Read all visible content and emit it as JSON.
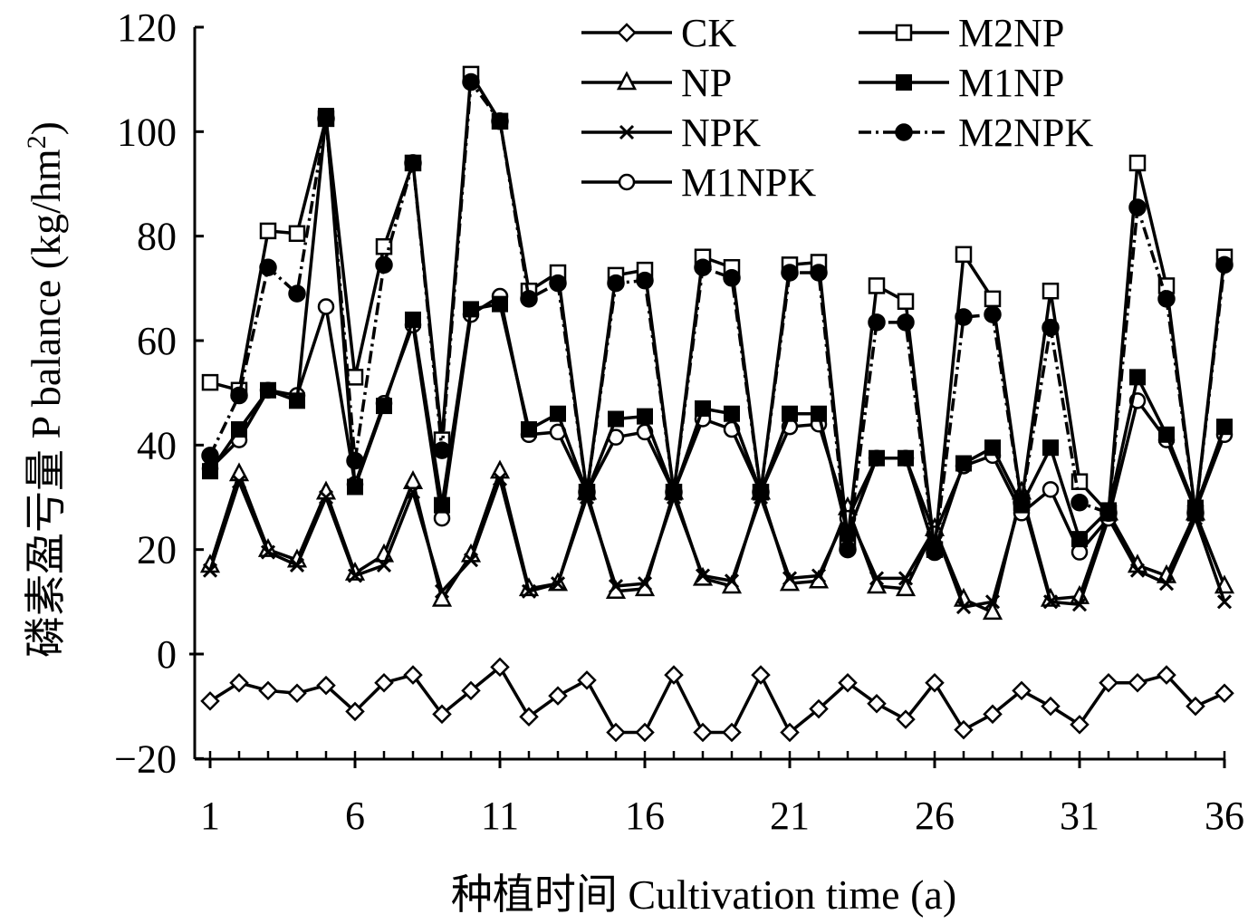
{
  "chart_data": {
    "type": "line",
    "title": "",
    "xlabel": "种植时间 Cultivation time (a)",
    "ylabel": "磷素盈亏量 P balance (kg/hm²)",
    "ylabel_parts": {
      "main": "磷素盈亏量 P balance (kg/hm",
      "sup": "2",
      "end": ")"
    },
    "xlim": [
      1,
      36
    ],
    "ylim": [
      -20,
      120
    ],
    "x_ticks": [
      1,
      6,
      11,
      16,
      21,
      26,
      31,
      36
    ],
    "x_tick_labels": [
      "1",
      "6",
      "11",
      "16",
      "21",
      "26",
      "31",
      "36"
    ],
    "y_ticks": [
      -20,
      0,
      20,
      40,
      60,
      80,
      100,
      120
    ],
    "y_tick_labels": [
      "−20",
      "0",
      "20",
      "40",
      "60",
      "80",
      "100",
      "120"
    ],
    "grid": false,
    "legend_position": "top-right",
    "x": [
      1,
      2,
      3,
      4,
      5,
      6,
      7,
      8,
      9,
      10,
      11,
      12,
      13,
      14,
      15,
      16,
      17,
      18,
      19,
      20,
      21,
      22,
      23,
      24,
      25,
      26,
      27,
      28,
      29,
      30,
      31,
      32,
      33,
      34,
      35,
      36
    ],
    "series": [
      {
        "name": "CK",
        "marker": "diamond-open",
        "dash": "solid",
        "values": [
          -9,
          -5.5,
          -7,
          -7.5,
          -6,
          -11,
          -5.5,
          -4,
          -11.5,
          -7,
          -2.5,
          -12,
          -8,
          -5,
          -15,
          -15,
          -4,
          -15,
          -15,
          -4,
          -15,
          -10.5,
          -5.5,
          -9.5,
          -12.5,
          -5.5,
          -14.5,
          -11.5,
          -7,
          -10,
          -13.5,
          -5.5,
          -5.5,
          -4,
          -10,
          -7.5
        ]
      },
      {
        "name": "NP",
        "marker": "triangle-open",
        "dash": "solid",
        "values": [
          17,
          34.5,
          20,
          18,
          31,
          15.5,
          19,
          33,
          10.5,
          19,
          35,
          12.5,
          13.5,
          31,
          12,
          12.5,
          31,
          14.5,
          13,
          31,
          13.5,
          14,
          28,
          13,
          12.5,
          24,
          10.5,
          8,
          31,
          10.5,
          11,
          27,
          17,
          15,
          27,
          13
        ]
      },
      {
        "name": "NPK",
        "marker": "x",
        "dash": "solid",
        "values": [
          16,
          33,
          19.5,
          17,
          30,
          15,
          17,
          31,
          12,
          18,
          33.5,
          12,
          13.5,
          30,
          13,
          13.5,
          30,
          15,
          14,
          30,
          14.5,
          15,
          27,
          14.5,
          14.5,
          24,
          9,
          10,
          30,
          10,
          9.5,
          26,
          16,
          13.5,
          26,
          10
        ]
      },
      {
        "name": "M1NPK",
        "marker": "circle-open",
        "dash": "solid",
        "values": [
          35.5,
          41,
          50.5,
          49.5,
          66.5,
          32.5,
          48,
          63,
          26,
          65,
          68.5,
          42,
          42.5,
          31,
          41.5,
          42.5,
          31,
          45,
          43,
          31,
          43.5,
          44,
          26,
          37.5,
          37.5,
          23,
          36,
          38,
          27,
          31.5,
          19.5,
          26,
          48.5,
          41,
          27.5,
          42
        ]
      },
      {
        "name": "M2NP",
        "marker": "square-open",
        "dash": "solid",
        "values": [
          52,
          50.5,
          81,
          80.5,
          102.5,
          53,
          78,
          94,
          41,
          111,
          102,
          69.5,
          73,
          31,
          72.5,
          73.5,
          31,
          76,
          74,
          31,
          74.5,
          75,
          22,
          70.5,
          67.5,
          20,
          76.5,
          68,
          29,
          69.5,
          33,
          27,
          94,
          70.5,
          27,
          76
        ]
      },
      {
        "name": "M1NP",
        "marker": "square-filled",
        "dash": "solid",
        "values": [
          35,
          43,
          50.5,
          48.5,
          103,
          32,
          47.5,
          64,
          28.5,
          66,
          67,
          43,
          46,
          31,
          45,
          45.5,
          31,
          47,
          46,
          31,
          46,
          46,
          23,
          37.5,
          37.5,
          20,
          36.5,
          39.5,
          28.5,
          39.5,
          22,
          27.5,
          53,
          42,
          28,
          43.5
        ]
      },
      {
        "name": "M2NPK",
        "marker": "circle-filled",
        "dash": "dashdot",
        "values": [
          38,
          49.5,
          74,
          69,
          102.5,
          37,
          74.5,
          94,
          39,
          109.5,
          102,
          68,
          71,
          31,
          71,
          71.5,
          31,
          74,
          72,
          31,
          73,
          73,
          20,
          63.5,
          63.5,
          19.5,
          64.5,
          65,
          29,
          62.5,
          29,
          27,
          85.5,
          68,
          27,
          74.5
        ]
      }
    ]
  }
}
